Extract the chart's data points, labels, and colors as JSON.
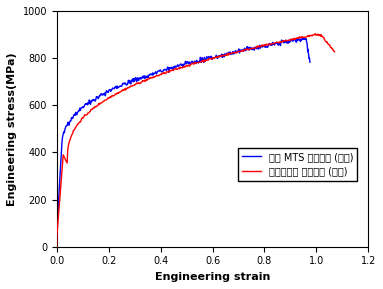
{
  "title": "",
  "xlabel": "Engineering strain",
  "ylabel": "Engineering stress(MPa)",
  "xlim": [
    0,
    1.2
  ],
  "ylim": [
    0,
    1000
  ],
  "xticks": [
    0,
    0.2,
    0.4,
    0.6,
    0.8,
    1.0,
    1.2
  ],
  "yticks": [
    0,
    200,
    400,
    600,
    800,
    1000
  ],
  "legend1": "방위선택형 인장장치 (소형)",
  "legend2": "범용 MTS 인장장치 (대형)",
  "color_red": "#ff0000",
  "color_blue": "#0000ff",
  "linewidth": 1.0,
  "legend_fontsize": 7,
  "axis_fontsize": 8,
  "tick_fontsize": 7
}
